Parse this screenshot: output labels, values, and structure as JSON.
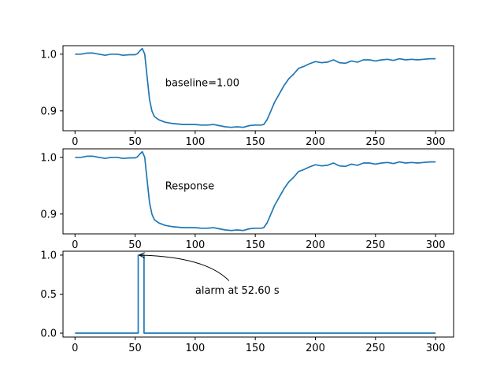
{
  "chart_data": [
    {
      "type": "line",
      "xlim": [
        -10,
        315
      ],
      "ylim": [
        0.865,
        1.015
      ],
      "xticks": [
        "0",
        "50",
        "100",
        "150",
        "200",
        "250",
        "300"
      ],
      "yticks": [
        "0.9",
        "1.0"
      ],
      "grid": false,
      "annotations": [
        {
          "text": "baseline=1.00",
          "x": 75,
          "y": 0.95
        }
      ],
      "series": [
        {
          "color": "#1f77b4",
          "x": [
            0,
            5,
            10,
            15,
            20,
            25,
            30,
            35,
            40,
            45,
            50,
            52,
            54,
            56,
            58,
            60,
            62,
            64,
            66,
            68,
            70,
            75,
            80,
            85,
            90,
            95,
            100,
            105,
            110,
            115,
            120,
            125,
            130,
            135,
            140,
            145,
            150,
            155,
            157,
            160,
            163,
            166,
            170,
            174,
            178,
            182,
            186,
            190,
            195,
            200,
            205,
            210,
            215,
            220,
            225,
            230,
            235,
            240,
            245,
            250,
            255,
            260,
            265,
            270,
            275,
            280,
            285,
            290,
            295,
            300
          ],
          "y": [
            1.0,
            1.0,
            1.002,
            1.002,
            1.0,
            0.998,
            1.0,
            1.0,
            0.998,
            0.999,
            0.999,
            1.001,
            1.006,
            1.01,
            1.0,
            0.96,
            0.92,
            0.9,
            0.89,
            0.887,
            0.884,
            0.88,
            0.878,
            0.877,
            0.876,
            0.876,
            0.876,
            0.875,
            0.875,
            0.876,
            0.874,
            0.872,
            0.871,
            0.872,
            0.871,
            0.874,
            0.875,
            0.875,
            0.876,
            0.885,
            0.9,
            0.915,
            0.93,
            0.945,
            0.957,
            0.965,
            0.975,
            0.978,
            0.983,
            0.987,
            0.985,
            0.986,
            0.99,
            0.985,
            0.984,
            0.988,
            0.986,
            0.99,
            0.99,
            0.988,
            0.99,
            0.991,
            0.989,
            0.992,
            0.99,
            0.991,
            0.99,
            0.991,
            0.992,
            0.992
          ]
        }
      ]
    },
    {
      "type": "line",
      "xlim": [
        -10,
        315
      ],
      "ylim": [
        0.865,
        1.015
      ],
      "xticks": [
        "0",
        "50",
        "100",
        "150",
        "200",
        "250",
        "300"
      ],
      "yticks": [
        "0.9",
        "1.0"
      ],
      "grid": false,
      "annotations": [
        {
          "text": "Response",
          "x": 75,
          "y": 0.95
        }
      ],
      "series": [
        {
          "color": "#1f77b4",
          "x": [
            0,
            5,
            10,
            15,
            20,
            25,
            30,
            35,
            40,
            45,
            50,
            52,
            54,
            56,
            58,
            60,
            62,
            64,
            66,
            68,
            70,
            75,
            80,
            85,
            90,
            95,
            100,
            105,
            110,
            115,
            120,
            125,
            130,
            135,
            140,
            145,
            150,
            155,
            157,
            160,
            163,
            166,
            170,
            174,
            178,
            182,
            186,
            190,
            195,
            200,
            205,
            210,
            215,
            220,
            225,
            230,
            235,
            240,
            245,
            250,
            255,
            260,
            265,
            270,
            275,
            280,
            285,
            290,
            295,
            300
          ],
          "y": [
            1.0,
            1.0,
            1.002,
            1.002,
            1.0,
            0.998,
            1.0,
            1.0,
            0.998,
            0.999,
            0.999,
            1.001,
            1.006,
            1.01,
            1.0,
            0.96,
            0.92,
            0.9,
            0.89,
            0.887,
            0.884,
            0.88,
            0.878,
            0.877,
            0.876,
            0.876,
            0.876,
            0.875,
            0.875,
            0.876,
            0.874,
            0.872,
            0.871,
            0.872,
            0.871,
            0.874,
            0.875,
            0.875,
            0.876,
            0.885,
            0.9,
            0.915,
            0.93,
            0.945,
            0.957,
            0.965,
            0.975,
            0.978,
            0.983,
            0.987,
            0.985,
            0.986,
            0.99,
            0.985,
            0.984,
            0.988,
            0.986,
            0.99,
            0.99,
            0.988,
            0.99,
            0.991,
            0.989,
            0.992,
            0.99,
            0.991,
            0.99,
            0.991,
            0.992,
            0.992
          ]
        }
      ]
    },
    {
      "type": "line",
      "xlim": [
        -10,
        315
      ],
      "ylim": [
        -0.05,
        1.05
      ],
      "xticks": [
        "0",
        "50",
        "100",
        "150",
        "200",
        "250",
        "300"
      ],
      "yticks": [
        "0.0",
        "0.5",
        "1.0"
      ],
      "grid": false,
      "annotations": [
        {
          "text": "alarm at 52.60 s",
          "x": 100,
          "y": 0.55,
          "arrow_to": {
            "x": 52.6,
            "y": 1.0
          }
        }
      ],
      "series": [
        {
          "color": "#1f77b4",
          "x": [
            0,
            52.6,
            52.6,
            57.4,
            57.4,
            300
          ],
          "y": [
            0,
            0,
            1,
            1,
            0,
            0
          ]
        }
      ]
    }
  ]
}
